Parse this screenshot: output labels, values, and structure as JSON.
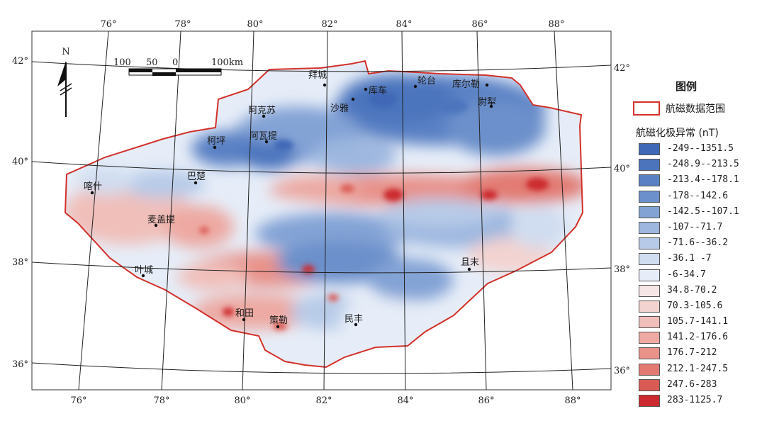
{
  "map": {
    "north_label": "N",
    "scale_labels": [
      "100",
      "50",
      "0",
      "100km"
    ],
    "top_lon_labels": [
      "76°",
      "78°",
      "80°",
      "82°",
      "84°",
      "86°",
      "88°"
    ],
    "bottom_lon_labels": [
      "76°",
      "78°",
      "80°",
      "82°",
      "84°",
      "86°",
      "88°"
    ],
    "left_lat_labels": [
      "42°",
      "40°",
      "38°",
      "36°"
    ],
    "right_lat_labels": [
      "42°",
      "40°",
      "38°",
      "36°"
    ],
    "cities": [
      {
        "name": "拜城"
      },
      {
        "name": "轮台"
      },
      {
        "name": "库车"
      },
      {
        "name": "沙雅"
      },
      {
        "name": "库尔勒"
      },
      {
        "name": "尉犁"
      },
      {
        "name": "阿克苏"
      },
      {
        "name": "柯坪"
      },
      {
        "name": "阿瓦提"
      },
      {
        "name": "巴楚"
      },
      {
        "name": "喀什"
      },
      {
        "name": "麦盖提"
      },
      {
        "name": "叶城"
      },
      {
        "name": "和田"
      },
      {
        "name": "策勒"
      },
      {
        "name": "民丰"
      },
      {
        "name": "且末"
      }
    ]
  },
  "legend": {
    "title": "图例",
    "range_label": "航磁数据范围",
    "range_color": "#d2312a",
    "anomaly_title": "航磁化极异常 (nT)",
    "items": [
      {
        "label": "-249--1351.5",
        "color": "#3f68b6"
      },
      {
        "label": "-248.9--213.5",
        "color": "#4b74bd"
      },
      {
        "label": "-213.4--178.1",
        "color": "#5a81c4"
      },
      {
        "label": "-178--142.6",
        "color": "#6c90cb"
      },
      {
        "label": "-142.5--107.1",
        "color": "#83a3d5"
      },
      {
        "label": "-107--71.7",
        "color": "#9db7df"
      },
      {
        "label": "-71.6--36.2",
        "color": "#b7cbe8"
      },
      {
        "label": "-36.1 -7",
        "color": "#d0ddf0"
      },
      {
        "label": "-6-34.7",
        "color": "#e6edf8"
      },
      {
        "label": "34.8-70.2",
        "color": "#f6e6e6"
      },
      {
        "label": "70.3-105.6",
        "color": "#f3d3d0"
      },
      {
        "label": "105.7-141.1",
        "color": "#f0bfba"
      },
      {
        "label": "141.2-176.6",
        "color": "#eda9a2"
      },
      {
        "label": "176.7-212",
        "color": "#e8928a"
      },
      {
        "label": "212.1-247.5",
        "color": "#e27a72"
      },
      {
        "label": "247.6-283",
        "color": "#da5b54"
      },
      {
        "label": "283-1125.7",
        "color": "#cc2a2e"
      }
    ]
  }
}
